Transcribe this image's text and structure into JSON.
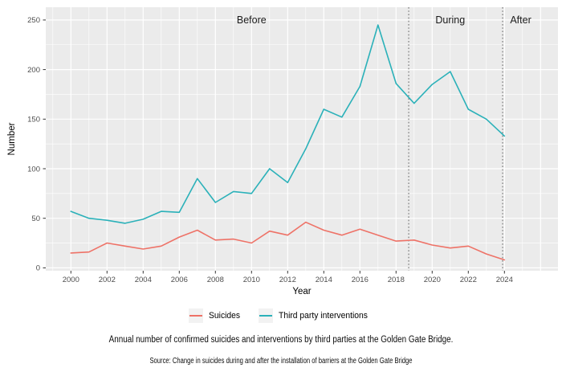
{
  "chart_data": {
    "type": "line",
    "title": "",
    "xlabel": "Year",
    "ylabel": "Number",
    "x": [
      2000,
      2001,
      2002,
      2003,
      2004,
      2005,
      2006,
      2007,
      2008,
      2009,
      2010,
      2011,
      2012,
      2013,
      2014,
      2015,
      2016,
      2017,
      2018,
      2019,
      2020,
      2021,
      2022,
      2023,
      2024
    ],
    "series": [
      {
        "name": "Suicides",
        "color": "#EE7267",
        "values": [
          15,
          16,
          25,
          22,
          19,
          22,
          31,
          38,
          28,
          29,
          25,
          37,
          33,
          46,
          38,
          33,
          39,
          33,
          27,
          28,
          23,
          20,
          22,
          14,
          8
        ]
      },
      {
        "name": "Third party interventions",
        "color": "#2BB1B9",
        "values": [
          57,
          50,
          48,
          45,
          49,
          57,
          56,
          90,
          66,
          77,
          75,
          100,
          86,
          120,
          160,
          152,
          183,
          245,
          186,
          166,
          185,
          198,
          160,
          150,
          133
        ]
      }
    ],
    "ylim": [
      0,
      250
    ],
    "yticks": [
      0,
      50,
      100,
      150,
      200,
      250
    ],
    "xticks": [
      2000,
      2002,
      2004,
      2006,
      2008,
      2010,
      2012,
      2014,
      2016,
      2018,
      2020,
      2022,
      2024
    ],
    "grid": "major-and-minor",
    "legend_position": "bottom",
    "phase_lines": [
      {
        "x": 2018.7
      },
      {
        "x": 2023.9
      }
    ],
    "phase_labels": [
      {
        "text": "Before",
        "x": 2010
      },
      {
        "text": "During",
        "x": 2021
      },
      {
        "text": "After",
        "x": 2024.9
      }
    ]
  },
  "caption": "Annual number of confirmed suicides and interventions by third parties at the Golden Gate Bridge.",
  "source": "Source: Change in suicides during and after the installation of barriers at the Golden Gate Bridge",
  "colors": {
    "panel_bg": "#EBEBEB",
    "grid_major": "#FFFFFF",
    "grid_minor": "#FFFFFF",
    "axis_text": "#4D4D4D",
    "axis_title": "#000000",
    "tick_mark": "#333333",
    "phase_line": "#5E5E5E",
    "phase_label": "#1A1A1A",
    "legend_key_bg": "#F2F2F2"
  }
}
